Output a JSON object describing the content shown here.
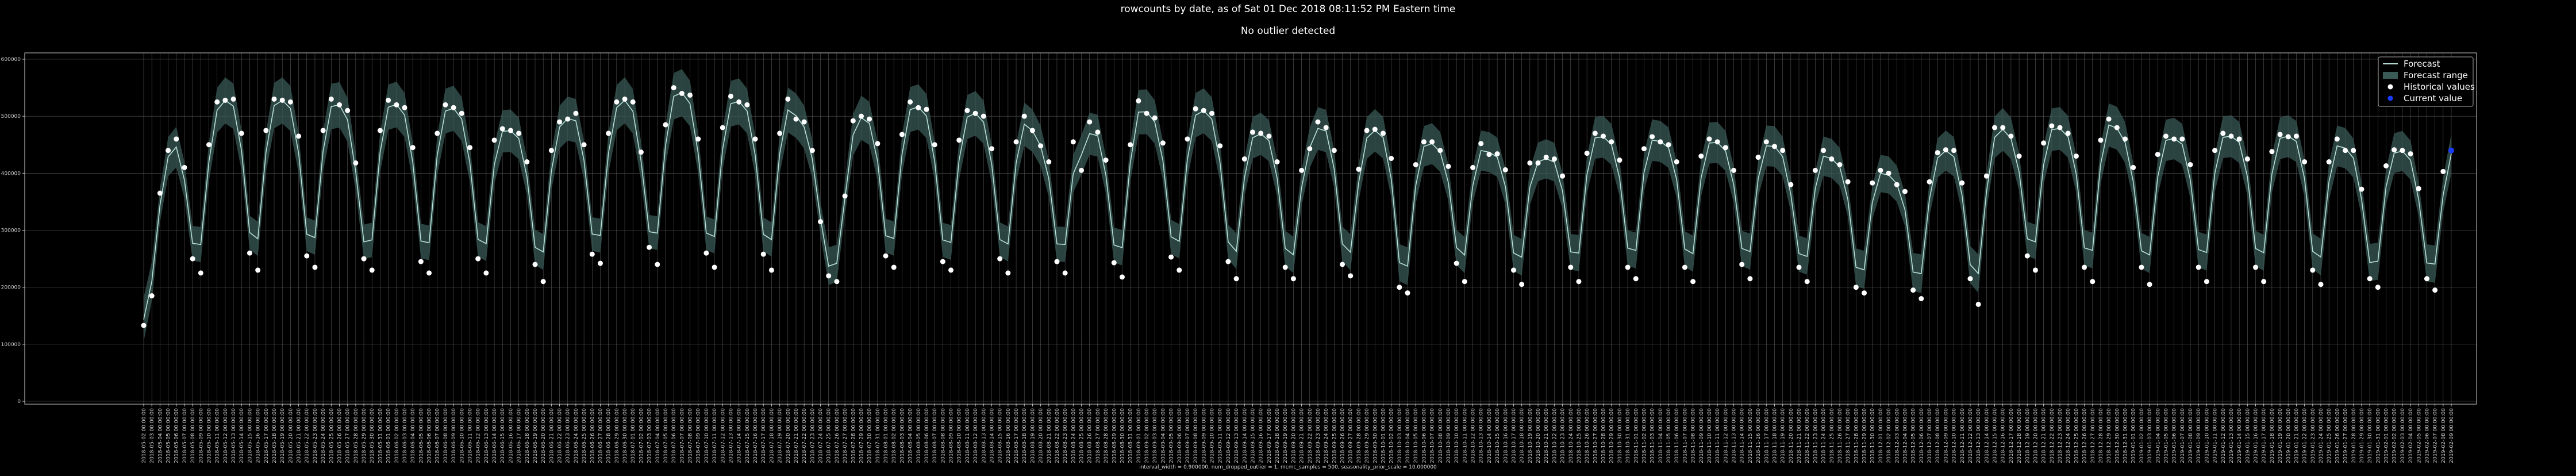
{
  "title": "rowcounts by date, as of Sat 01 Dec 2018 08:11:52 PM  Eastern time",
  "subtitle": "No outlier detected",
  "footnote": "interval_width = 0.900000, num_dropped_outlier = 1, mcmc_samples = 500, seasonality_prior_scale = 10.000000",
  "colors": {
    "background": "#000000",
    "forecast": "#b8e0d8",
    "band": "#3a5a55",
    "historical": "#ffffff",
    "current": "#1a3cff",
    "grid": "#5a5a5a"
  },
  "legend": {
    "placement": "top-right",
    "items": [
      {
        "label": "Forecast",
        "kind": "line"
      },
      {
        "label": "Forecast range",
        "kind": "band"
      },
      {
        "label": "Historical values",
        "kind": "dot"
      },
      {
        "label": "Current value",
        "kind": "current"
      }
    ]
  },
  "chart_data": {
    "type": "line",
    "title": "rowcounts by date, as of Sat 01 Dec 2018 08:11:52 PM  Eastern time",
    "subtitle": "No outlier detected",
    "xlabel": "",
    "ylabel": "",
    "grid": true,
    "ylim": [
      0,
      600000
    ],
    "yticks": [
      0,
      100000,
      200000,
      300000,
      400000,
      500000,
      600000
    ],
    "ytick_labels": [
      "0",
      "100000",
      "200000",
      "300000",
      "400000",
      "500000",
      "600000"
    ],
    "x_start": "2018-05-02",
    "x_end": "2018-12-01",
    "x_tick_label_format": "YYYY-MM-DD 00:00:00",
    "weekly_pattern_note": "",
    "series": [
      {
        "name": "Historical values",
        "kind": "scatter",
        "values": [
          133000,
          185000,
          365000,
          440000,
          460000,
          410000,
          250000,
          225000,
          450000,
          525000,
          528000,
          530000,
          470000,
          260000,
          230000,
          475000,
          530000,
          528000,
          525000,
          465000,
          255000,
          235000,
          475000,
          530000,
          520000,
          510000,
          418000,
          250000,
          230000,
          475000,
          528000,
          520000,
          515000,
          445000,
          245000,
          225000,
          470000,
          520000,
          515000,
          505000,
          445000,
          250000,
          225000,
          458000,
          478000,
          475000,
          470000,
          420000,
          240000,
          210000,
          440000,
          490000,
          495000,
          505000,
          450000,
          258000,
          242000,
          470000,
          525000,
          530000,
          525000,
          437000,
          270000,
          240000,
          485000,
          550000,
          540000,
          537000,
          460000,
          260000,
          235000,
          480000,
          535000,
          525000,
          520000,
          460000,
          258000,
          230000,
          470000,
          530000,
          495000,
          490000,
          440000,
          315000,
          220000,
          210000,
          360000,
          492000,
          500000,
          495000,
          452000,
          255000,
          235000,
          468000,
          525000,
          515000,
          512000,
          450000,
          245000,
          230000,
          458000,
          510000,
          505000,
          500000,
          443000,
          250000,
          225000,
          455000,
          500000,
          475000,
          448000,
          420000,
          245000,
          225000,
          455000,
          405000,
          490000,
          472000,
          423000,
          243000,
          218000,
          450000,
          527000,
          505000,
          497000,
          453000,
          253000,
          230000,
          460000,
          513000,
          510000,
          505000,
          448000,
          245000,
          215000,
          425000,
          472000,
          470000,
          465000,
          420000,
          235000,
          215000,
          405000,
          443000,
          490000,
          480000,
          440000,
          240000,
          220000,
          407000,
          475000,
          477000,
          470000,
          426000,
          200000,
          190000,
          415000,
          455000,
          455000,
          440000,
          412000,
          242000,
          210000,
          410000,
          452000,
          433000,
          434000,
          406000,
          230000,
          205000,
          418000,
          418000,
          428000,
          425000,
          395000,
          235000,
          210000,
          435000,
          470000,
          465000,
          455000,
          423000,
          235000,
          215000,
          443000,
          464000,
          455000,
          450000,
          420000,
          235000,
          210000,
          430000,
          460000,
          455000,
          445000,
          405000,
          240000,
          215000,
          428000,
          455000,
          447000,
          440000,
          380000,
          235000,
          210000,
          405000,
          440000,
          425000,
          415000,
          385000,
          200000,
          190000,
          383000,
          405000,
          400000,
          380000,
          368000,
          195000,
          180000,
          385000,
          436000,
          441000,
          440000,
          383000,
          215000,
          170000,
          395000,
          480000,
          480000,
          465000,
          430000,
          255000,
          230000,
          453000,
          483000,
          480000,
          470000,
          430000,
          235000,
          210000,
          458000,
          495000,
          480000,
          460000,
          410000,
          235000,
          205000,
          433000,
          465000,
          460000,
          460000,
          415000,
          235000,
          210000,
          440000,
          470000,
          465000,
          460000,
          425000,
          235000,
          210000,
          438000,
          468000,
          464000,
          465000,
          420000,
          230000,
          205000,
          420000,
          460000,
          440000,
          440000,
          372000,
          215000,
          200000,
          413000,
          441000,
          440000,
          434000,
          373000,
          215000,
          195000,
          403000
        ]
      },
      {
        "name": "Current value",
        "kind": "point",
        "x": "2018-12-01",
        "y": 440000
      }
    ]
  }
}
